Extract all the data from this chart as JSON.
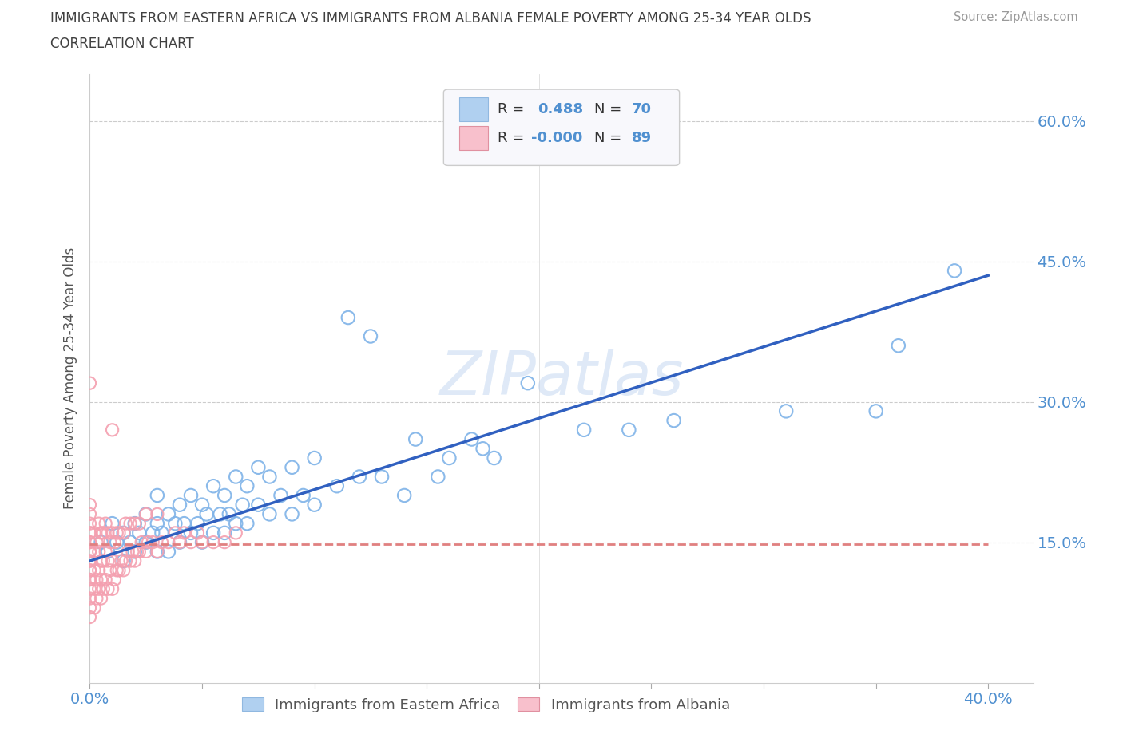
{
  "title": "IMMIGRANTS FROM EASTERN AFRICA VS IMMIGRANTS FROM ALBANIA FEMALE POVERTY AMONG 25-34 YEAR OLDS",
  "subtitle": "CORRELATION CHART",
  "source": "Source: ZipAtlas.com",
  "ylabel": "Female Poverty Among 25-34 Year Olds",
  "xlim": [
    0.0,
    0.42
  ],
  "ylim": [
    0.0,
    0.65
  ],
  "xtick_positions": [
    0.0,
    0.05,
    0.1,
    0.15,
    0.2,
    0.25,
    0.3,
    0.35,
    0.4
  ],
  "xticklabels": [
    "0.0%",
    "",
    "",
    "",
    "",
    "",
    "",
    "",
    "40.0%"
  ],
  "ytick_positions": [
    0.15,
    0.3,
    0.45,
    0.6
  ],
  "ytick_labels": [
    "15.0%",
    "30.0%",
    "45.0%",
    "60.0%"
  ],
  "r_eastern_africa": 0.488,
  "n_eastern_africa": 70,
  "r_albania": -0.0,
  "n_albania": 89,
  "color_eastern_africa": "#7FB3E8",
  "color_albania": "#F4A0B0",
  "regression_line_color_blue": "#3060C0",
  "regression_line_color_red": "#E08080",
  "title_color": "#404040",
  "axis_label_color": "#5090D0",
  "legend_box_color_blue": "#B0D0F0",
  "legend_box_color_pink": "#F8C0CC",
  "eastern_africa_x": [
    0.005,
    0.008,
    0.01,
    0.012,
    0.015,
    0.015,
    0.018,
    0.02,
    0.02,
    0.022,
    0.025,
    0.025,
    0.028,
    0.03,
    0.03,
    0.03,
    0.032,
    0.035,
    0.035,
    0.038,
    0.04,
    0.04,
    0.042,
    0.045,
    0.045,
    0.048,
    0.05,
    0.05,
    0.052,
    0.055,
    0.055,
    0.058,
    0.06,
    0.06,
    0.062,
    0.065,
    0.065,
    0.068,
    0.07,
    0.07,
    0.075,
    0.075,
    0.08,
    0.08,
    0.085,
    0.09,
    0.09,
    0.095,
    0.1,
    0.1,
    0.11,
    0.115,
    0.12,
    0.125,
    0.13,
    0.14,
    0.145,
    0.155,
    0.16,
    0.17,
    0.175,
    0.18,
    0.195,
    0.22,
    0.24,
    0.26,
    0.31,
    0.35,
    0.36,
    0.385
  ],
  "eastern_africa_y": [
    0.15,
    0.14,
    0.17,
    0.15,
    0.13,
    0.16,
    0.15,
    0.14,
    0.17,
    0.16,
    0.15,
    0.18,
    0.16,
    0.14,
    0.17,
    0.2,
    0.16,
    0.14,
    0.18,
    0.17,
    0.15,
    0.19,
    0.17,
    0.16,
    0.2,
    0.17,
    0.15,
    0.19,
    0.18,
    0.16,
    0.21,
    0.18,
    0.16,
    0.2,
    0.18,
    0.17,
    0.22,
    0.19,
    0.17,
    0.21,
    0.19,
    0.23,
    0.18,
    0.22,
    0.2,
    0.18,
    0.23,
    0.2,
    0.19,
    0.24,
    0.21,
    0.39,
    0.22,
    0.37,
    0.22,
    0.2,
    0.26,
    0.22,
    0.24,
    0.26,
    0.25,
    0.24,
    0.32,
    0.27,
    0.27,
    0.28,
    0.29,
    0.29,
    0.36,
    0.44
  ],
  "albania_x": [
    0.0,
    0.0,
    0.0,
    0.0,
    0.0,
    0.0,
    0.0,
    0.0,
    0.0,
    0.0,
    0.0,
    0.0,
    0.0,
    0.0,
    0.0,
    0.0,
    0.0,
    0.0,
    0.0,
    0.0,
    0.002,
    0.002,
    0.002,
    0.002,
    0.002,
    0.003,
    0.003,
    0.003,
    0.004,
    0.004,
    0.004,
    0.004,
    0.005,
    0.005,
    0.005,
    0.005,
    0.006,
    0.006,
    0.006,
    0.007,
    0.007,
    0.007,
    0.008,
    0.008,
    0.008,
    0.009,
    0.009,
    0.01,
    0.01,
    0.01,
    0.01,
    0.011,
    0.011,
    0.012,
    0.012,
    0.013,
    0.013,
    0.014,
    0.015,
    0.015,
    0.016,
    0.016,
    0.017,
    0.018,
    0.018,
    0.019,
    0.02,
    0.02,
    0.021,
    0.022,
    0.022,
    0.023,
    0.025,
    0.025,
    0.026,
    0.028,
    0.03,
    0.03,
    0.032,
    0.035,
    0.038,
    0.04,
    0.042,
    0.045,
    0.048,
    0.05,
    0.055,
    0.06,
    0.065
  ],
  "albania_y": [
    0.07,
    0.08,
    0.09,
    0.1,
    0.11,
    0.11,
    0.12,
    0.12,
    0.13,
    0.13,
    0.14,
    0.14,
    0.15,
    0.15,
    0.16,
    0.16,
    0.17,
    0.18,
    0.19,
    0.32,
    0.08,
    0.1,
    0.12,
    0.14,
    0.16,
    0.09,
    0.11,
    0.15,
    0.1,
    0.12,
    0.14,
    0.17,
    0.09,
    0.11,
    0.13,
    0.16,
    0.1,
    0.13,
    0.16,
    0.11,
    0.14,
    0.17,
    0.1,
    0.13,
    0.16,
    0.12,
    0.15,
    0.1,
    0.13,
    0.16,
    0.27,
    0.11,
    0.15,
    0.12,
    0.16,
    0.12,
    0.16,
    0.13,
    0.12,
    0.16,
    0.13,
    0.17,
    0.14,
    0.13,
    0.17,
    0.14,
    0.13,
    0.17,
    0.14,
    0.14,
    0.17,
    0.15,
    0.14,
    0.18,
    0.15,
    0.15,
    0.14,
    0.18,
    0.15,
    0.15,
    0.16,
    0.15,
    0.16,
    0.15,
    0.16,
    0.15,
    0.15,
    0.15,
    0.16
  ],
  "regression_ea_x0": 0.0,
  "regression_ea_y0": 0.13,
  "regression_ea_x1": 0.4,
  "regression_ea_y1": 0.435,
  "regression_alb_y": 0.148
}
